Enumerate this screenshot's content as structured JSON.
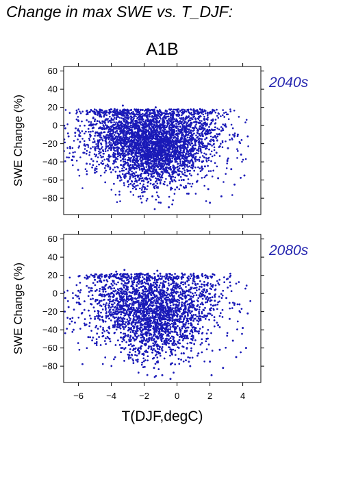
{
  "page": {
    "title": "Change in max SWE vs. T_DJF:"
  },
  "colors": {
    "points": "#1a1ab8",
    "period_label": "#2626b0",
    "axis": "#000000"
  },
  "chart_data": [
    {
      "type": "scatter",
      "title": "A1B",
      "panel_label": "2040s",
      "xlabel": "",
      "ylabel": "SWE Change (%)",
      "xlim": [
        -6.9,
        5.1
      ],
      "ylim": [
        -98,
        65
      ],
      "x_ticks": [
        -6,
        -4,
        -2,
        0,
        2,
        4
      ],
      "x_tick_labels": [],
      "y_ticks": [
        60,
        40,
        20,
        0,
        -20,
        -40,
        -60,
        -80
      ],
      "y_tick_labels": [
        "60",
        "40",
        "20",
        "0",
        "−20",
        "−40",
        "−60",
        "−80"
      ],
      "grid": false,
      "series": [
        {
          "marker": "dot",
          "points": [
            [
              -6.8,
              -3
            ],
            [
              -6.6,
              -12
            ],
            [
              -6.5,
              -25
            ],
            [
              -6.4,
              -38
            ],
            [
              -6.2,
              -8
            ],
            [
              -6.0,
              5
            ],
            [
              -5.9,
              -18
            ],
            [
              -5.7,
              -30
            ],
            [
              -5.5,
              -42
            ],
            [
              -5.3,
              -10
            ],
            [
              -5.1,
              8
            ],
            [
              -5.0,
              -52
            ],
            [
              -4.8,
              -22
            ],
            [
              -4.6,
              -35
            ],
            [
              -4.4,
              12
            ],
            [
              -4.2,
              -45
            ],
            [
              -4.0,
              -5
            ],
            [
              -3.8,
              18
            ],
            [
              -3.6,
              -28
            ],
            [
              -3.5,
              -55
            ],
            [
              -3.3,
              22
            ],
            [
              -3.1,
              -15
            ],
            [
              -3.0,
              -62
            ],
            [
              -2.8,
              10
            ],
            [
              -2.6,
              -38
            ],
            [
              -2.5,
              -70
            ],
            [
              -2.3,
              15
            ],
            [
              -2.1,
              -25
            ],
            [
              -2.0,
              -48
            ],
            [
              -1.8,
              5
            ],
            [
              -1.6,
              -60
            ],
            [
              -1.5,
              -78
            ],
            [
              -1.3,
              20
            ],
            [
              -1.1,
              -32
            ],
            [
              -1.0,
              -85
            ],
            [
              -0.8,
              -12
            ],
            [
              -0.6,
              -50
            ],
            [
              -0.5,
              -90
            ],
            [
              -0.3,
              8
            ],
            [
              -0.1,
              -40
            ],
            [
              0.0,
              -68
            ],
            [
              0.2,
              16
            ],
            [
              0.4,
              -22
            ],
            [
              0.5,
              -55
            ],
            [
              0.7,
              -75
            ],
            [
              0.9,
              12
            ],
            [
              1.0,
              -35
            ],
            [
              1.2,
              -62
            ],
            [
              1.4,
              18
            ],
            [
              1.5,
              -15
            ],
            [
              1.7,
              -45
            ],
            [
              1.9,
              -70
            ],
            [
              2.0,
              -85
            ],
            [
              2.2,
              -5
            ],
            [
              2.4,
              -30
            ],
            [
              2.5,
              -58
            ],
            [
              2.7,
              -78
            ],
            [
              2.9,
              0
            ],
            [
              3.1,
              -25
            ],
            [
              3.3,
              -48
            ],
            [
              3.5,
              -65
            ],
            [
              3.7,
              -10
            ],
            [
              3.9,
              -32
            ],
            [
              4.1,
              -55
            ],
            [
              4.3,
              -12
            ]
          ]
        }
      ]
    },
    {
      "type": "scatter",
      "title": "",
      "panel_label": "2080s",
      "xlabel": "T(DJF,degC)",
      "ylabel": "SWE Change (%)",
      "xlim": [
        -6.9,
        5.1
      ],
      "ylim": [
        -98,
        65
      ],
      "x_ticks": [
        -6,
        -4,
        -2,
        0,
        2,
        4
      ],
      "x_tick_labels": [
        "−6",
        "−4",
        "−2",
        "0",
        "2",
        "4"
      ],
      "y_ticks": [
        60,
        40,
        20,
        0,
        -20,
        -40,
        -60,
        -80
      ],
      "y_tick_labels": [
        "60",
        "40",
        "20",
        "0",
        "−20",
        "−40",
        "−60",
        "−80"
      ],
      "grid": false,
      "series": [
        {
          "marker": "dot",
          "points": [
            [
              -6.8,
              -5
            ],
            [
              -6.6,
              -15
            ],
            [
              -6.5,
              -28
            ],
            [
              -6.3,
              -40
            ],
            [
              -6.1,
              -10
            ],
            [
              -6.0,
              3
            ],
            [
              -5.8,
              -22
            ],
            [
              -5.6,
              -35
            ],
            [
              -5.4,
              -48
            ],
            [
              -5.2,
              -12
            ],
            [
              -5.0,
              15
            ],
            [
              -4.9,
              -55
            ],
            [
              -4.7,
              -25
            ],
            [
              -4.5,
              -40
            ],
            [
              -4.3,
              19
            ],
            [
              -4.1,
              -50
            ],
            [
              -3.9,
              -8
            ],
            [
              -3.7,
              24
            ],
            [
              -3.5,
              -30
            ],
            [
              -3.4,
              -60
            ],
            [
              -3.2,
              26
            ],
            [
              -3.0,
              -18
            ],
            [
              -2.9,
              -68
            ],
            [
              -2.7,
              12
            ],
            [
              -2.5,
              -42
            ],
            [
              -2.4,
              -75
            ],
            [
              -2.2,
              22
            ],
            [
              -2.0,
              -28
            ],
            [
              -1.9,
              -52
            ],
            [
              -1.7,
              6
            ],
            [
              -1.5,
              -65
            ],
            [
              -1.4,
              -82
            ],
            [
              -1.2,
              25
            ],
            [
              -1.0,
              -35
            ],
            [
              -0.9,
              -90
            ],
            [
              -0.7,
              -15
            ],
            [
              -0.5,
              -55
            ],
            [
              -0.4,
              -94
            ],
            [
              -0.2,
              18
            ],
            [
              0.0,
              -45
            ],
            [
              0.1,
              -72
            ],
            [
              0.3,
              22
            ],
            [
              0.5,
              -25
            ],
            [
              0.6,
              -60
            ],
            [
              0.8,
              -80
            ],
            [
              1.0,
              15
            ],
            [
              1.1,
              -38
            ],
            [
              1.3,
              -66
            ],
            [
              1.5,
              10
            ],
            [
              1.6,
              -18
            ],
            [
              1.8,
              -50
            ],
            [
              2.0,
              -75
            ],
            [
              2.1,
              -90
            ],
            [
              2.3,
              -8
            ],
            [
              2.5,
              -35
            ],
            [
              2.6,
              -62
            ],
            [
              2.8,
              -82
            ],
            [
              3.0,
              -5
            ],
            [
              3.2,
              -28
            ],
            [
              3.4,
              -52
            ],
            [
              3.6,
              -70
            ],
            [
              3.8,
              -12
            ],
            [
              4.0,
              -38
            ],
            [
              4.2,
              -60
            ],
            [
              4.3,
              -22
            ]
          ]
        }
      ]
    }
  ]
}
